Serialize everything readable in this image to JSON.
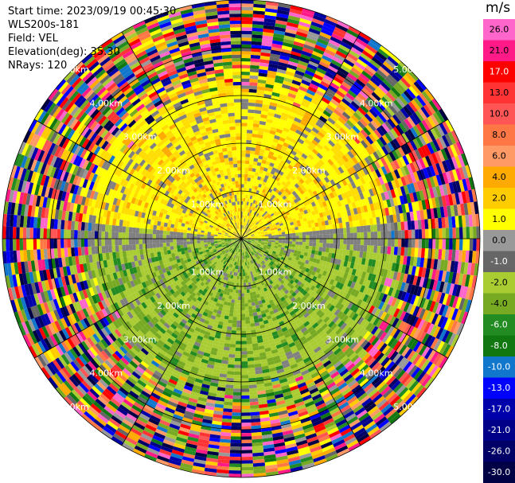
{
  "info": {
    "start_time": "Start time: 2023/09/19 00:45:30",
    "instrument": "WLS200s-181",
    "field": "Field: VEL",
    "elevation": "Elevation(deg): 35.30",
    "nrays": "NRays: 120"
  },
  "colorbar": {
    "unit": "m/s",
    "ticks": [
      "26.0",
      "21.0",
      "17.0",
      "13.0",
      "10.0",
      "8.0",
      "6.0",
      "4.0",
      "2.0",
      "1.0",
      "0.0",
      "-1.0",
      "-2.0",
      "-4.0",
      "-6.0",
      "-8.0",
      "-10.0",
      "-13.0",
      "-17.0",
      "-21.0",
      "-26.0",
      "-30.0"
    ],
    "colors": [
      "#ff66cc",
      "#ff1a88",
      "#ff0000",
      "#ff3333",
      "#ff5555",
      "#ff7744",
      "#ff9966",
      "#ffaa00",
      "#ffcc00",
      "#ffff00",
      "#999999",
      "#666666",
      "#aacc33",
      "#77aa22",
      "#228b22",
      "#117711",
      "#1177cc",
      "#0000ff",
      "#0000aa",
      "#000088",
      "#000066",
      "#000044"
    ]
  },
  "chart_data": {
    "type": "ppi",
    "field": "VEL",
    "nrays": 120,
    "elevation_deg": 35.3,
    "range_rings_km": [
      1,
      2,
      3,
      4,
      5
    ],
    "range_ring_labels": [
      "1.00km",
      "2.00km",
      "3.00km",
      "4.00km",
      "5.00km"
    ],
    "max_range_km": 5,
    "azimuth_spokes_deg": [
      0,
      30,
      60,
      90,
      120,
      150,
      180,
      210,
      240,
      270,
      300,
      330
    ],
    "value_range": [
      -30,
      26
    ],
    "regions": [
      {
        "description": "northern half near range",
        "velocity_range": [
          1,
          4
        ]
      },
      {
        "description": "near-zero band along east-west axis",
        "velocity_range": [
          -1,
          0
        ]
      },
      {
        "description": "southern half near range",
        "velocity_range": [
          -8,
          -2
        ]
      },
      {
        "description": "far range noise",
        "velocity_range": [
          -30,
          26
        ]
      }
    ]
  }
}
